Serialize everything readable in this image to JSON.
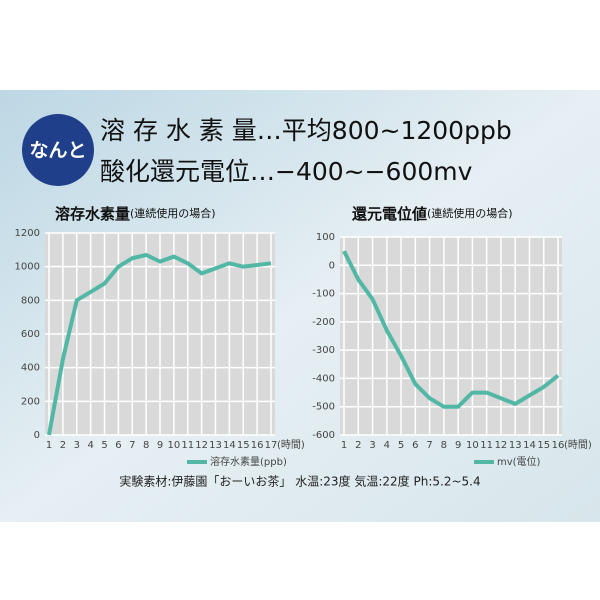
{
  "header": {
    "badge": "なんと",
    "line1": "溶 存 水 素 量…平均800~1200ppb",
    "line2": "酸化還元電位…−400~−600mv"
  },
  "chart_data": [
    {
      "type": "line",
      "title": "溶存水素量",
      "subtitle": "(連続使用の場合)",
      "x_label": "(時間)",
      "categories": [
        "1",
        "2",
        "3",
        "4",
        "5",
        "6",
        "7",
        "8",
        "9",
        "10",
        "11",
        "12",
        "13",
        "14",
        "15",
        "16",
        "17"
      ],
      "series": [
        {
          "name": "溶存水素量(ppb)",
          "color": "#52b8a5",
          "values": [
            0,
            450,
            800,
            850,
            900,
            1000,
            1050,
            1070,
            1030,
            1060,
            1020,
            960,
            990,
            1020,
            1000,
            1010,
            1020
          ]
        }
      ],
      "ylim": [
        0,
        1200
      ],
      "yticks": [
        0,
        200,
        400,
        600,
        800,
        1000,
        1200
      ],
      "grid": true
    },
    {
      "type": "line",
      "title": "還元電位値",
      "subtitle": "(連続使用の場合)",
      "x_label": "(時間)",
      "categories": [
        "1",
        "2",
        "3",
        "4",
        "5",
        "6",
        "7",
        "8",
        "9",
        "10",
        "11",
        "12",
        "13",
        "14",
        "15",
        "16"
      ],
      "series": [
        {
          "name": "mv(電位)",
          "color": "#52b8a5",
          "values": [
            50,
            -50,
            -120,
            -230,
            -320,
            -420,
            -470,
            -500,
            -500,
            -450,
            -450,
            -470,
            -490,
            -460,
            -430,
            -390
          ]
        }
      ],
      "ylim": [
        -600,
        100
      ],
      "yticks": [
        100,
        0,
        -100,
        -200,
        -300,
        -400,
        -500,
        -600
      ],
      "grid": true
    }
  ],
  "footer": "実験素材:伊藤園「おーいお茶」 水温:23度 気温:22度 Ph:5.2~5.4"
}
